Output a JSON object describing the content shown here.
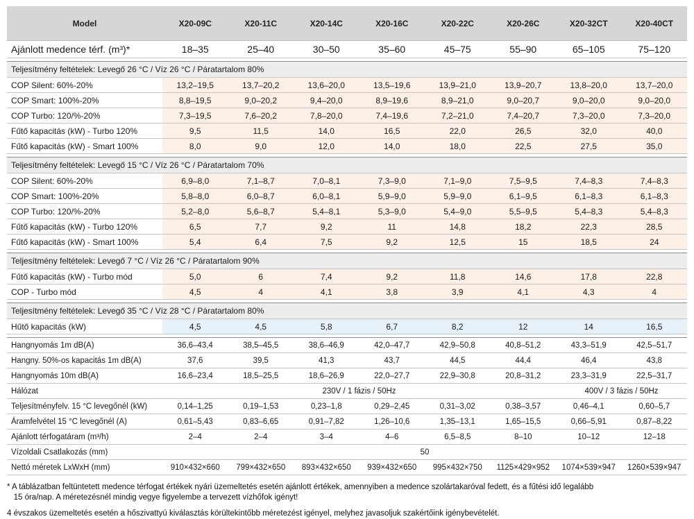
{
  "header": {
    "model_label": "Model",
    "models": [
      "X20-09C",
      "X20-11C",
      "X20-14C",
      "X20-16C",
      "X20-22C",
      "X20-26C",
      "X20-32CT",
      "X20-40CT"
    ]
  },
  "volume_row": {
    "label": "Ajánlott medence térf. (m³)*",
    "values": [
      "18–35",
      "25–40",
      "30–50",
      "35–60",
      "45–75",
      "55–90",
      "65–105",
      "75–120"
    ]
  },
  "sections": [
    {
      "title": "Teljesítmény feltételek: Levegő 26 °C / Víz 26 °C / Páratartalom 80%",
      "rows": [
        {
          "label": "COP Silent: 60%-20%",
          "values": [
            "13,2–19,5",
            "13,7–20,2",
            "13,6–20,0",
            "13,5–19,6",
            "13,9–21,0",
            "13,9–20,7",
            "13,8–20,0",
            "13,7–20,0"
          ]
        },
        {
          "label": "COP Smart: 100%-20%",
          "values": [
            "8,8–19,5",
            "9,0–20,2",
            "9,4–20,0",
            "8,9–19,6",
            "8,9–21,0",
            "9,0–20,7",
            "9,0–20,0",
            "9,0–20,0"
          ]
        },
        {
          "label": "COP Turbo: 120/%-20%",
          "values": [
            "7,3–19,5",
            "7,6–20,2",
            "7,8–20,0",
            "7,4–19,6",
            "7,2–21,0",
            "7,4–20,7",
            "7,3–20,0",
            "7,3–20,0"
          ]
        },
        {
          "label": "Fűtő kapacitás (kW) - Turbo 120%",
          "values": [
            "9,5",
            "11,5",
            "14,0",
            "16,5",
            "22,0",
            "26,5",
            "32,0",
            "40,0"
          ]
        },
        {
          "label": "Fűtő kapacitás (kW) - Smart 100%",
          "values": [
            "8,0",
            "9,0",
            "12,0",
            "14,0",
            "18,0",
            "22,5",
            "27,5",
            "35,0"
          ]
        }
      ]
    },
    {
      "title": "Teljesítmény feltételek: Levegő 15 °C / Víz 26 °C / Páratartalom 70%",
      "rows": [
        {
          "label": "COP Silent: 60%-20%",
          "values": [
            "6,9–8,0",
            "7,1–8,7",
            "7,0–8,1",
            "7,3–9,0",
            "7,1–9,0",
            "7,5–9,5",
            "7,4–8,3",
            "7,4–8,3"
          ]
        },
        {
          "label": "COP Smart: 100%-20%",
          "values": [
            "5,8–8,0",
            "6,0–8,7",
            "6,0–8,1",
            "5,9–9,0",
            "5,9–9,0",
            "6,1–9,5",
            "6,1–8,3",
            "6,1–8,3"
          ]
        },
        {
          "label": "COP Turbo: 120/%-20%",
          "values": [
            "5,2–8,0",
            "5,6–8,7",
            "5,4–8,1",
            "5,3–9,0",
            "5,4–9,0",
            "5,5–9,5",
            "5,4–8,3",
            "5,4–8,3"
          ]
        },
        {
          "label": "Fűtő kapacitás (kW) - Turbo 120%",
          "values": [
            "6,5",
            "7,7",
            "9,2",
            "11",
            "14,8",
            "18,2",
            "22,3",
            "28,5"
          ]
        },
        {
          "label": "Fűtő kapacitás (kW) - Smart 100%",
          "values": [
            "5,4",
            "6,4",
            "7,5",
            "9,2",
            "12,5",
            "15",
            "18,5",
            "24"
          ]
        }
      ]
    },
    {
      "title": "Teljesítmény feltételek: Levegő 7 °C / Víz 26 °C / Páratartalom 90%",
      "rows": [
        {
          "label": "Fűtő kapacitás (kW) - Turbo mód",
          "values": [
            "5,0",
            "6",
            "7,4",
            "9,2",
            "11,8",
            "14,6",
            "17,8",
            "22,8"
          ]
        },
        {
          "label": "COP - Turbo mód",
          "values": [
            "4,5",
            "4",
            "4,1",
            "3,8",
            "3,9",
            "4,1",
            "4,3",
            "4"
          ]
        }
      ]
    },
    {
      "title": "Teljesítmény feltételek: Levegő 35 °C / Víz 28 °C / Páratartalom 80%",
      "rows": [
        {
          "label": "Hűtő kapacitás (kW)",
          "values": [
            "4,5",
            "4,5",
            "5,8",
            "6,7",
            "8,2",
            "12",
            "14",
            "16,5"
          ]
        }
      ]
    }
  ],
  "general_rows": [
    {
      "label": "Hangnyomás 1m dB(A)",
      "values": [
        "36,6–43,4",
        "38,5–45,5",
        "38,6–46,9",
        "42,0–47,7",
        "42,9–50,8",
        "40,8–51,2",
        "43,3–51,9",
        "42,5–51,7"
      ]
    },
    {
      "label": "Hangny. 50%-os kapacitás 1m dB(A)",
      "values": [
        "37,6",
        "39,5",
        "41,3",
        "43,7",
        "44,5",
        "44,4",
        "46,4",
        "43,8"
      ]
    },
    {
      "label": "Hangnyomás 10m dB(A)",
      "values": [
        "16,6–23,4",
        "18,5–25,5",
        "18,6–26,9",
        "22,0–27,7",
        "22,9–30,8",
        "20,8–31,2",
        "23,3–31,9",
        "22,5–31,7"
      ]
    }
  ],
  "network_row": {
    "label": "Hálózat",
    "single_phase": "230V / 1 fázis / 50Hz",
    "three_phase": "400V / 3 fázis / 50Hz"
  },
  "tail_rows": [
    {
      "label": "Teljesítményfelv. 15 °C levegőnél (kW)",
      "values": [
        "0,14–1,25",
        "0,19–1,53",
        "0,23–1,8",
        "0,29–2,45",
        "0,31–3,02",
        "0,38–3,57",
        "0,46–4,1",
        "0,60–5,7"
      ]
    },
    {
      "label": "Áramfelvétel 15 °C levegőnél (A)",
      "values": [
        "0,61–5,43",
        "0,83–6,65",
        "0,91–7,82",
        "1,26–10,6",
        "1,35–13,1",
        "1,65–15,5",
        "0,66–5,91",
        "0,87–8,22"
      ]
    },
    {
      "label": "Ajánlott térfogatáram (m³/h)",
      "values": [
        "2–4",
        "2–4",
        "3–4",
        "4–6",
        "6,5–8,5",
        "8–10",
        "10–12",
        "12–18"
      ]
    }
  ],
  "connection_row": {
    "label": "Vízoldali Csatlakozás (mm)",
    "value": "50"
  },
  "dimension_row": {
    "label": "Nettó méretek LxWxH (mm)",
    "values": [
      "910×432×660",
      "799×432×650",
      "893×432×650",
      "939×432×650",
      "995×432×750",
      "1125×429×952",
      "1074×539×947",
      "1260×539×947"
    ]
  },
  "notes": {
    "note1_line1": "* A táblázatban feltüntetett medence térfogat értékek nyári üzemeltetés esetén ajánlott értékek, amennyiben a medence szolártakaróval fedett, és a fűtési idő legalább",
    "note1_line2": "15 óra/nap. A méretezésnél mindig vegye figyelembe a tervezett vízhőfok igényt!",
    "note2": "4 évszakos üzemeltetés esetén a hőszivattyú kiválasztás körültekintőbb méretezést igényel, melyhez javasoljuk szakértőink igénybevételét."
  },
  "colors": {
    "header_bg": "#d6d6d6",
    "section_bg": "#ededed",
    "peach": "#fdf0e6",
    "blue": "#e7f1f9"
  }
}
